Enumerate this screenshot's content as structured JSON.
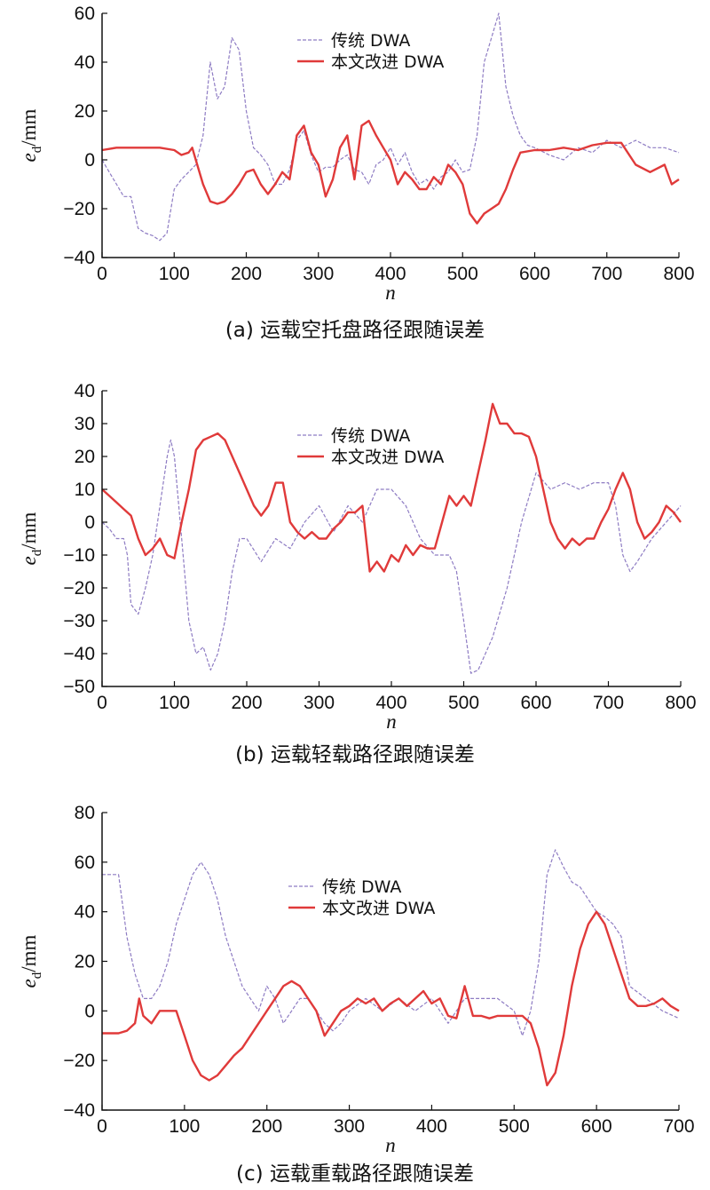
{
  "figure": {
    "colors": {
      "traditional": "#8e7cc3",
      "improved": "#e03a3a",
      "axis": "#111111"
    }
  },
  "chart_data": [
    {
      "id": "a",
      "type": "line",
      "caption": "(a) 运载空托盘路径跟随误差",
      "xlabel": "n",
      "ylabel_main": "e",
      "ylabel_sub": "d",
      "ylabel_unit": "/mm",
      "xlim": [
        0,
        800
      ],
      "ylim": [
        -40,
        60
      ],
      "xticks": [
        0,
        100,
        200,
        300,
        400,
        500,
        600,
        700,
        800
      ],
      "yticks": [
        -40,
        -20,
        0,
        20,
        40,
        60
      ],
      "legend_position": "top-center",
      "series": [
        {
          "name": "传统 DWA",
          "style": "dashed",
          "x": [
            0,
            10,
            20,
            30,
            40,
            50,
            60,
            70,
            80,
            90,
            100,
            110,
            120,
            130,
            140,
            150,
            160,
            170,
            180,
            190,
            200,
            210,
            220,
            230,
            240,
            250,
            260,
            270,
            280,
            290,
            300,
            310,
            320,
            330,
            340,
            350,
            360,
            370,
            380,
            390,
            400,
            410,
            420,
            430,
            440,
            450,
            460,
            470,
            480,
            490,
            500,
            510,
            520,
            530,
            540,
            550,
            560,
            570,
            580,
            590,
            600,
            620,
            640,
            660,
            680,
            700,
            720,
            740,
            760,
            780,
            800
          ],
          "y": [
            0,
            -5,
            -10,
            -15,
            -15,
            -28,
            -30,
            -31,
            -33,
            -30,
            -12,
            -8,
            -5,
            -2,
            10,
            40,
            25,
            30,
            50,
            45,
            20,
            5,
            2,
            -2,
            -10,
            -10,
            -4,
            8,
            12,
            2,
            -5,
            -3,
            -3,
            0,
            2,
            -4,
            -5,
            -10,
            -2,
            0,
            5,
            -2,
            3,
            -5,
            -10,
            -8,
            -12,
            -7,
            -5,
            0,
            -5,
            -4,
            10,
            40,
            50,
            60,
            30,
            18,
            10,
            6,
            5,
            2,
            0,
            5,
            3,
            8,
            5,
            8,
            5,
            5,
            3
          ]
        },
        {
          "name": "本文改进 DWA",
          "style": "solid",
          "x": [
            0,
            20,
            40,
            60,
            80,
            100,
            110,
            120,
            125,
            130,
            140,
            150,
            160,
            170,
            180,
            190,
            200,
            210,
            220,
            230,
            240,
            250,
            260,
            270,
            280,
            290,
            300,
            310,
            320,
            330,
            340,
            350,
            360,
            370,
            380,
            390,
            400,
            410,
            420,
            430,
            440,
            450,
            460,
            470,
            480,
            490,
            500,
            510,
            520,
            530,
            540,
            550,
            560,
            570,
            580,
            600,
            620,
            640,
            660,
            680,
            700,
            720,
            740,
            760,
            780,
            790,
            800
          ],
          "y": [
            4,
            5,
            5,
            5,
            5,
            4,
            2,
            3,
            5,
            0,
            -10,
            -17,
            -18,
            -17,
            -14,
            -10,
            -5,
            -4,
            -10,
            -14,
            -10,
            -5,
            -8,
            10,
            14,
            3,
            -2,
            -15,
            -8,
            5,
            10,
            -8,
            14,
            16,
            10,
            5,
            0,
            -10,
            -5,
            -8,
            -12,
            -12,
            -7,
            -10,
            -2,
            -5,
            -10,
            -22,
            -26,
            -22,
            -20,
            -18,
            -12,
            -4,
            3,
            4,
            4,
            5,
            4,
            6,
            7,
            7,
            -2,
            -5,
            -2,
            -10,
            -8
          ]
        }
      ]
    },
    {
      "id": "b",
      "type": "line",
      "caption": "(b) 运载轻载路径跟随误差",
      "xlabel": "n",
      "ylabel_main": "e",
      "ylabel_sub": "d",
      "ylabel_unit": "/mm",
      "xlim": [
        0,
        800
      ],
      "ylim": [
        -50,
        40
      ],
      "xticks": [
        0,
        100,
        200,
        300,
        400,
        500,
        600,
        700,
        800
      ],
      "yticks": [
        -50,
        -40,
        -30,
        -20,
        -10,
        0,
        10,
        20,
        30,
        40
      ],
      "legend_position": "top-center",
      "series": [
        {
          "name": "传统 DWA",
          "style": "dashed",
          "x": [
            0,
            10,
            20,
            30,
            35,
            40,
            50,
            60,
            70,
            80,
            90,
            95,
            100,
            110,
            120,
            130,
            140,
            150,
            160,
            170,
            180,
            190,
            200,
            220,
            240,
            260,
            280,
            300,
            320,
            340,
            360,
            380,
            400,
            420,
            440,
            460,
            480,
            490,
            500,
            510,
            520,
            540,
            560,
            580,
            600,
            620,
            640,
            660,
            680,
            700,
            710,
            720,
            730,
            740,
            760,
            780,
            800
          ],
          "y": [
            0,
            -2,
            -5,
            -5,
            -10,
            -25,
            -28,
            -20,
            -10,
            5,
            20,
            25,
            20,
            -5,
            -30,
            -40,
            -38,
            -45,
            -40,
            -30,
            -15,
            -5,
            -5,
            -12,
            -5,
            -8,
            0,
            5,
            -3,
            5,
            0,
            10,
            10,
            5,
            -5,
            -10,
            -10,
            -15,
            -30,
            -46,
            -45,
            -35,
            -20,
            0,
            15,
            10,
            12,
            10,
            12,
            12,
            5,
            -10,
            -15,
            -12,
            -5,
            0,
            5
          ]
        },
        {
          "name": "本文改进 DWA",
          "style": "solid",
          "x": [
            0,
            10,
            20,
            30,
            40,
            50,
            60,
            70,
            80,
            90,
            100,
            110,
            120,
            130,
            140,
            150,
            160,
            170,
            180,
            190,
            200,
            210,
            220,
            230,
            240,
            250,
            260,
            270,
            280,
            290,
            300,
            310,
            320,
            330,
            340,
            350,
            360,
            370,
            380,
            390,
            400,
            410,
            420,
            430,
            440,
            450,
            460,
            470,
            480,
            490,
            500,
            510,
            520,
            530,
            540,
            550,
            560,
            570,
            580,
            590,
            600,
            610,
            620,
            630,
            640,
            650,
            660,
            670,
            680,
            690,
            700,
            710,
            720,
            730,
            740,
            750,
            760,
            770,
            780,
            790,
            800
          ],
          "y": [
            10,
            8,
            6,
            4,
            2,
            -5,
            -10,
            -8,
            -5,
            -10,
            -11,
            0,
            10,
            22,
            25,
            26,
            27,
            25,
            20,
            15,
            10,
            5,
            2,
            5,
            12,
            12,
            0,
            -3,
            -5,
            -3,
            -5,
            -5,
            -2,
            0,
            3,
            3,
            5,
            -15,
            -12,
            -15,
            -10,
            -12,
            -7,
            -10,
            -7,
            -8,
            -8,
            0,
            8,
            5,
            8,
            5,
            15,
            25,
            36,
            30,
            30,
            27,
            27,
            26,
            20,
            10,
            0,
            -5,
            -8,
            -5,
            -7,
            -5,
            -5,
            0,
            4,
            10,
            15,
            10,
            0,
            -5,
            -3,
            0,
            5,
            3,
            0
          ]
        }
      ]
    },
    {
      "id": "c",
      "type": "line",
      "caption": "(c) 运载重载路径跟随误差",
      "xlabel": "n",
      "ylabel_main": "e",
      "ylabel_sub": "d",
      "ylabel_unit": "/mm",
      "xlim": [
        0,
        700
      ],
      "ylim": [
        -40,
        80
      ],
      "xticks": [
        0,
        100,
        200,
        300,
        400,
        500,
        600,
        700
      ],
      "yticks": [
        -40,
        -20,
        0,
        20,
        40,
        60,
        80
      ],
      "legend_position": "top-center",
      "series": [
        {
          "name": "传统 DWA",
          "style": "dashed",
          "x": [
            0,
            10,
            20,
            30,
            40,
            50,
            60,
            70,
            80,
            90,
            100,
            110,
            120,
            130,
            140,
            150,
            160,
            170,
            180,
            190,
            200,
            210,
            220,
            230,
            240,
            250,
            260,
            270,
            280,
            290,
            300,
            320,
            340,
            360,
            380,
            400,
            420,
            440,
            460,
            480,
            500,
            510,
            520,
            530,
            540,
            550,
            560,
            570,
            580,
            590,
            600,
            610,
            620,
            630,
            640,
            660,
            680,
            700
          ],
          "y": [
            55,
            55,
            55,
            30,
            15,
            5,
            5,
            10,
            20,
            35,
            45,
            55,
            60,
            55,
            45,
            30,
            20,
            10,
            5,
            0,
            10,
            5,
            -5,
            0,
            5,
            5,
            0,
            -5,
            -8,
            -5,
            0,
            5,
            0,
            5,
            0,
            5,
            -5,
            5,
            5,
            5,
            0,
            -10,
            0,
            20,
            55,
            65,
            58,
            52,
            50,
            45,
            40,
            38,
            35,
            30,
            10,
            5,
            0,
            -3
          ]
        },
        {
          "name": "本文改进 DWA",
          "style": "solid",
          "x": [
            0,
            10,
            20,
            30,
            40,
            45,
            50,
            60,
            70,
            80,
            90,
            100,
            110,
            120,
            130,
            140,
            150,
            160,
            170,
            180,
            190,
            200,
            210,
            220,
            230,
            240,
            250,
            260,
            270,
            280,
            290,
            300,
            310,
            320,
            330,
            340,
            350,
            360,
            370,
            380,
            390,
            400,
            410,
            420,
            430,
            440,
            450,
            460,
            470,
            480,
            490,
            500,
            510,
            520,
            530,
            540,
            550,
            560,
            570,
            580,
            590,
            600,
            610,
            620,
            630,
            640,
            650,
            660,
            670,
            680,
            690,
            700
          ],
          "y": [
            -9,
            -9,
            -9,
            -8,
            -5,
            5,
            -2,
            -5,
            0,
            0,
            0,
            -10,
            -20,
            -26,
            -28,
            -26,
            -22,
            -18,
            -15,
            -10,
            -5,
            0,
            5,
            10,
            12,
            10,
            5,
            0,
            -10,
            -5,
            0,
            2,
            5,
            3,
            5,
            0,
            3,
            5,
            2,
            5,
            8,
            3,
            5,
            -2,
            -3,
            10,
            -2,
            -2,
            -3,
            -2,
            -2,
            -2,
            -2,
            -5,
            -15,
            -30,
            -25,
            -10,
            10,
            25,
            35,
            40,
            35,
            25,
            15,
            5,
            2,
            2,
            3,
            5,
            2,
            0
          ]
        }
      ]
    }
  ]
}
